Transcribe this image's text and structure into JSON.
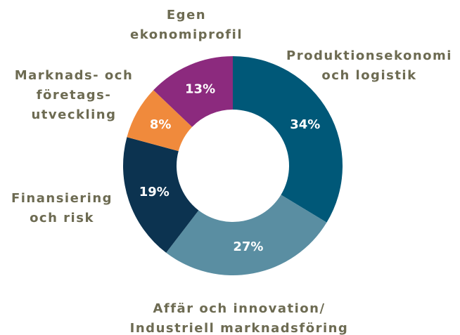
{
  "chart_data": {
    "type": "donut",
    "categories": [
      "Produktionsekonomi\noch logistik",
      "Affär och innovation/\nIndustriell marknadsföring",
      "Finansiering\noch risk",
      "Marknads- och\nföretags-\nutveckling",
      "Egen\nekonomiprofil"
    ],
    "values": [
      34,
      27,
      19,
      8,
      13
    ],
    "value_labels": [
      "34%",
      "27%",
      "19%",
      "8%",
      "13%"
    ],
    "colors": [
      "#005878",
      "#5a8ea2",
      "#0c3350",
      "#f08a3c",
      "#8c2a7e"
    ]
  }
}
